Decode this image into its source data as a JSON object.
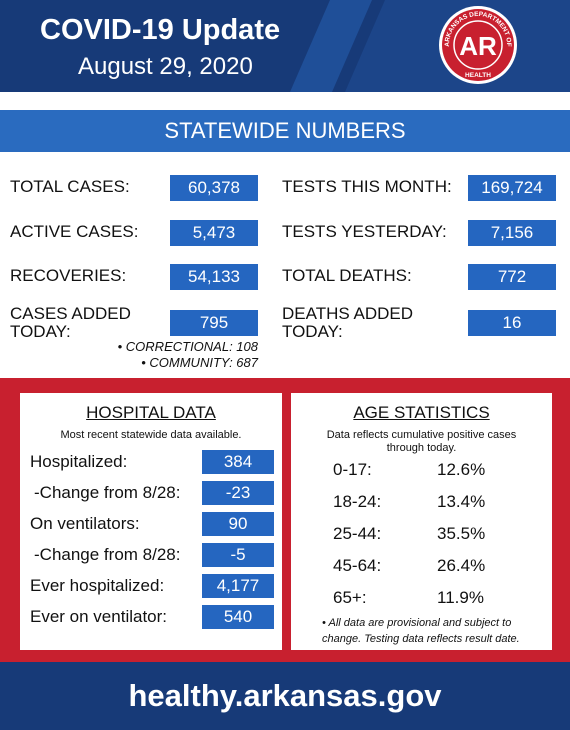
{
  "header": {
    "title": "COVID-19 Update",
    "date": "August 29, 2020",
    "logo": {
      "top": "ARKANSAS DEPARTMENT OF",
      "bottom": "HEALTH",
      "mark": "AR"
    }
  },
  "statewide": {
    "title": "STATEWIDE NUMBERS",
    "left": [
      {
        "label": "TOTAL CASES:",
        "value": "60,378"
      },
      {
        "label": "ACTIVE CASES:",
        "value": "5,473"
      },
      {
        "label": "RECOVERIES:",
        "value": "54,133"
      },
      {
        "label": "CASES ADDED TODAY:",
        "value": "795"
      }
    ],
    "right": [
      {
        "label": "TESTS THIS MONTH:",
        "value": "169,724"
      },
      {
        "label": "TESTS YESTERDAY:",
        "value": "7,156"
      },
      {
        "label": "TOTAL DEATHS:",
        "value": "772"
      },
      {
        "label": "DEATHS ADDED TODAY:",
        "value": "16"
      }
    ],
    "breakdown": [
      "• CORRECTIONAL: 108",
      "• COMMUNITY: 687"
    ]
  },
  "hospital": {
    "title": "HOSPITAL DATA",
    "subtitle": "Most recent statewide data available.",
    "rows": [
      {
        "label": "Hospitalized:",
        "value": "384"
      },
      {
        "label": "-Change from 8/28:",
        "value": "-23"
      },
      {
        "label": "On ventilators:",
        "value": "90"
      },
      {
        "label": "-Change from 8/28:",
        "value": "-5"
      },
      {
        "label": "Ever hospitalized:",
        "value": "4,177"
      },
      {
        "label": "Ever on ventilator:",
        "value": "540"
      }
    ]
  },
  "age": {
    "title": "AGE STATISTICS",
    "subtitle": "Data reflects cumulative positive cases through today.",
    "rows": [
      {
        "label": "0-17:",
        "value": "12.6%"
      },
      {
        "label": "18-24:",
        "value": "13.4%"
      },
      {
        "label": "25-44:",
        "value": "35.5%"
      },
      {
        "label": "45-64:",
        "value": "26.4%"
      },
      {
        "label": "65+:",
        "value": "11.9%"
      }
    ],
    "note": "• All data are provisional and subject to change. Testing data reflects result date."
  },
  "footer": {
    "url": "healthy.arkansas.gov"
  }
}
